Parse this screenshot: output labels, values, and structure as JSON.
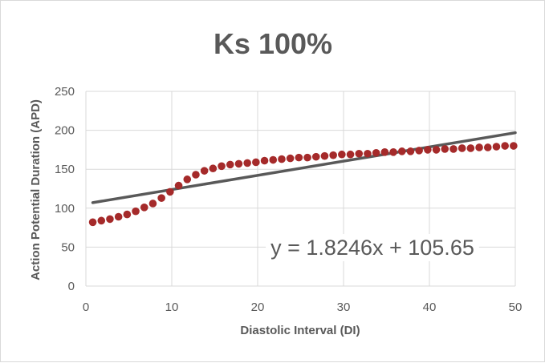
{
  "chart_data": {
    "type": "scatter",
    "title": "Ks 100%",
    "xlabel": "Diastolic Interval (DI)",
    "ylabel": "Action Potential Duration (APD)",
    "xlim": [
      0,
      50
    ],
    "ylim": [
      0,
      250
    ],
    "x_ticks": [
      "0",
      "10",
      "20",
      "30",
      "40",
      "50"
    ],
    "y_ticks": [
      "0",
      "50",
      "100",
      "150",
      "200",
      "250"
    ],
    "grid": true,
    "legend": "none",
    "series": [
      {
        "color": "#a52a2a",
        "marker": "circle",
        "x": [
          0.8,
          1.8,
          2.8,
          3.8,
          4.8,
          5.8,
          6.8,
          7.8,
          8.8,
          9.8,
          10.8,
          11.8,
          12.8,
          13.8,
          14.8,
          15.8,
          16.8,
          17.8,
          18.8,
          19.8,
          20.8,
          21.8,
          22.8,
          23.8,
          24.8,
          25.8,
          26.8,
          27.8,
          28.8,
          29.8,
          30.8,
          31.8,
          32.8,
          33.8,
          34.8,
          35.8,
          36.8,
          37.8,
          38.8,
          39.8,
          40.8,
          41.8,
          42.8,
          43.8,
          44.8,
          45.8,
          46.8,
          47.8,
          48.8,
          49.8
        ],
        "y": [
          82,
          84,
          86,
          89,
          92,
          96,
          101,
          106,
          113,
          121,
          129,
          137,
          143,
          148,
          151,
          154,
          156,
          157,
          158,
          159,
          161,
          162,
          163,
          164,
          165,
          165,
          166,
          167,
          168,
          169,
          169,
          170,
          170,
          171,
          172,
          172,
          173,
          173,
          174,
          175,
          175,
          176,
          176,
          177,
          177,
          178,
          178,
          179,
          180,
          180
        ]
      }
    ],
    "trendline": {
      "type": "linear",
      "color": "#595959",
      "slope": 1.8246,
      "intercept": 105.65,
      "x_range": [
        0.8,
        50
      ],
      "equation": "y = 1.8246x + 105.65"
    }
  }
}
